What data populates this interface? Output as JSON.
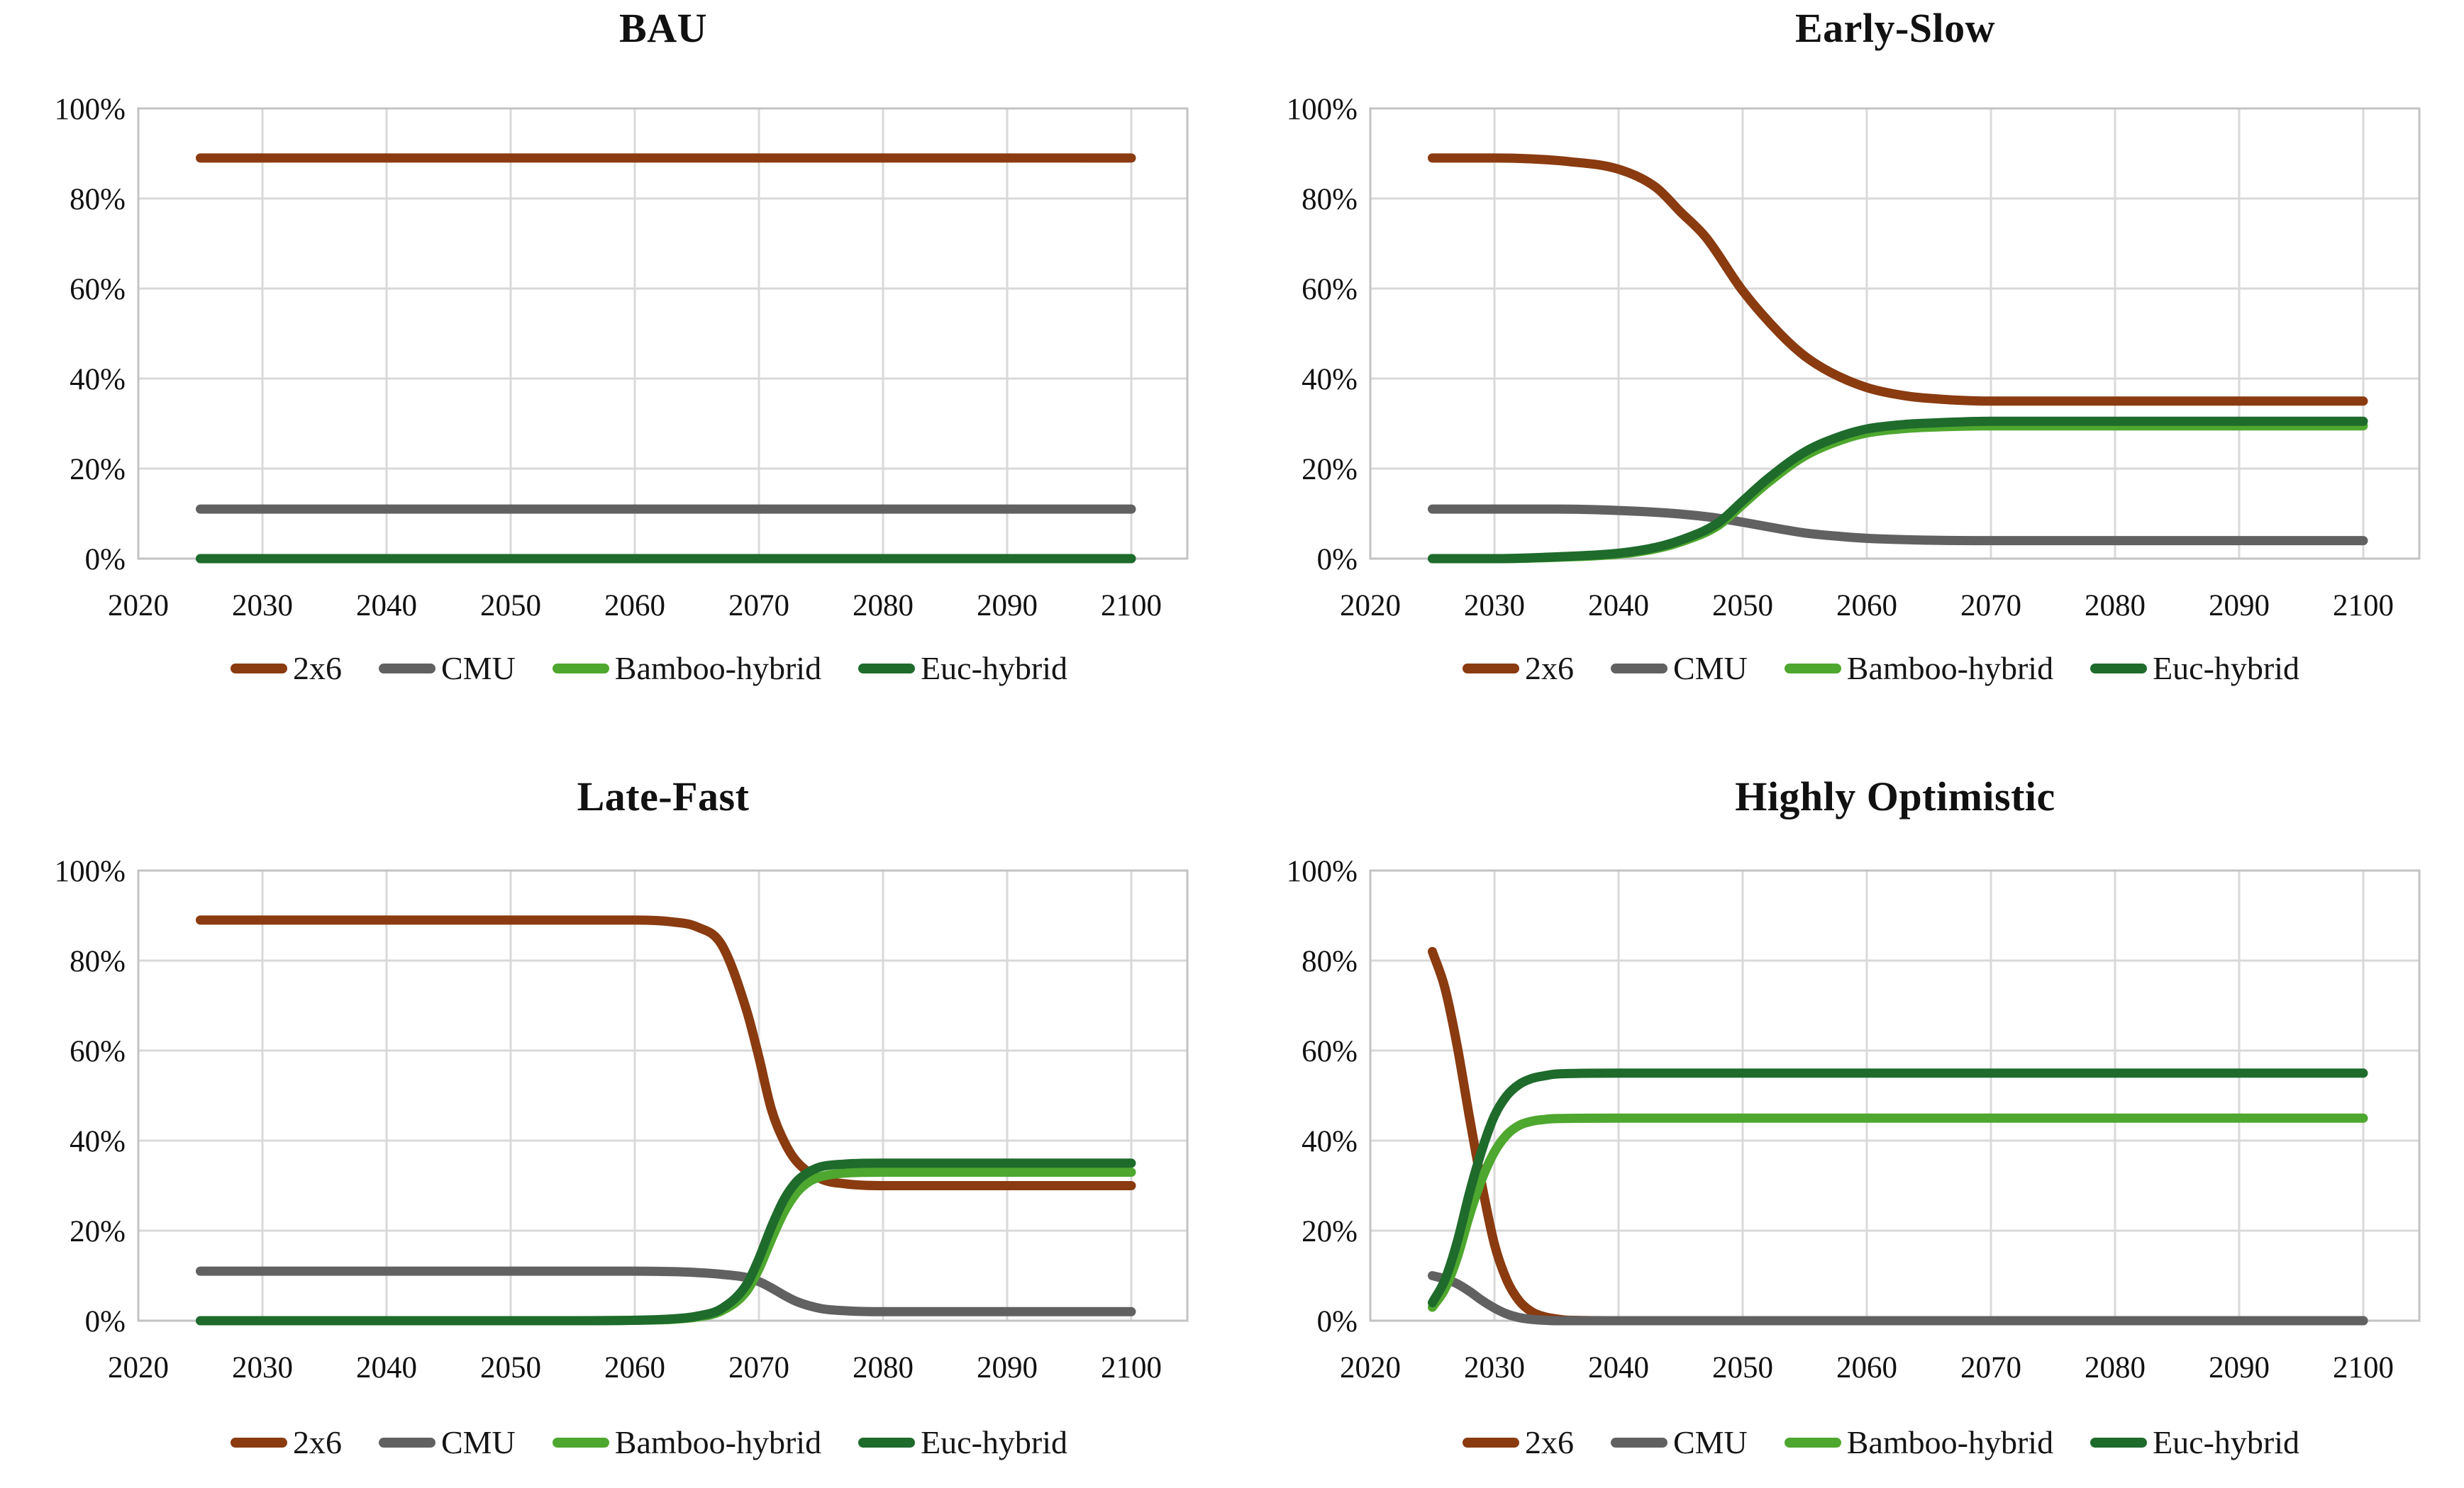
{
  "figure": {
    "background": "#ffffff",
    "text_color": "#111111",
    "gridline_color": "#d9d9d9",
    "border_color": "#c3c3c3"
  },
  "legend": {
    "items": [
      {
        "label": "2x6",
        "color": "#8a3b10"
      },
      {
        "label": "CMU",
        "color": "#616161"
      },
      {
        "label": "Bamboo-hybrid",
        "color": "#4ea72e"
      },
      {
        "label": "Euc-hybrid",
        "color": "#1e6b2c"
      }
    ]
  },
  "axes": {
    "x_range_display": [
      2020,
      2104.5
    ],
    "y_range": [
      0,
      100
    ],
    "grid": true,
    "x_ticks": [
      {
        "value": 2020,
        "label": "2020"
      },
      {
        "value": 2030,
        "label": "2030"
      },
      {
        "value": 2040,
        "label": "2040"
      },
      {
        "value": 2050,
        "label": "2050"
      },
      {
        "value": 2060,
        "label": "2060"
      },
      {
        "value": 2070,
        "label": "2070"
      },
      {
        "value": 2080,
        "label": "2080"
      },
      {
        "value": 2090,
        "label": "2090"
      },
      {
        "value": 2100,
        "label": "2100"
      }
    ],
    "y_ticks": [
      {
        "value": 0,
        "label": "0%"
      },
      {
        "value": 20,
        "label": "20%"
      },
      {
        "value": 40,
        "label": "40%"
      },
      {
        "value": 60,
        "label": "60%"
      },
      {
        "value": 80,
        "label": "80%"
      },
      {
        "value": 100,
        "label": "100%"
      }
    ]
  },
  "chart_data": [
    {
      "type": "line",
      "title": "BAU",
      "xlabel": "",
      "ylabel": "",
      "legend_position": "bottom",
      "series": [
        {
          "name": "2x6",
          "color": "#8a3b10",
          "points": [
            [
              2025,
              89
            ],
            [
              2040,
              89
            ],
            [
              2060,
              89
            ],
            [
              2080,
              89
            ],
            [
              2100,
              89
            ]
          ]
        },
        {
          "name": "CMU",
          "color": "#616161",
          "points": [
            [
              2025,
              11
            ],
            [
              2040,
              11
            ],
            [
              2060,
              11
            ],
            [
              2080,
              11
            ],
            [
              2100,
              11
            ]
          ]
        },
        {
          "name": "Bamboo-hybrid",
          "color": "#4ea72e",
          "points": [
            [
              2025,
              0
            ],
            [
              2040,
              0
            ],
            [
              2060,
              0
            ],
            [
              2080,
              0
            ],
            [
              2100,
              0
            ]
          ]
        },
        {
          "name": "Euc-hybrid",
          "color": "#1e6b2c",
          "points": [
            [
              2025,
              0
            ],
            [
              2040,
              0
            ],
            [
              2060,
              0
            ],
            [
              2080,
              0
            ],
            [
              2100,
              0
            ]
          ]
        }
      ]
    },
    {
      "type": "line",
      "title": "Early-Slow",
      "xlabel": "",
      "ylabel": "",
      "legend_position": "bottom",
      "series": [
        {
          "name": "2x6",
          "color": "#8a3b10",
          "points": [
            [
              2025,
              89
            ],
            [
              2030,
              89
            ],
            [
              2033,
              88.8
            ],
            [
              2036,
              88.2
            ],
            [
              2040,
              86.5
            ],
            [
              2043,
              82.5
            ],
            [
              2045,
              77
            ],
            [
              2047,
              71.5
            ],
            [
              2050,
              59.5
            ],
            [
              2053,
              50
            ],
            [
              2055,
              45
            ],
            [
              2057,
              41.5
            ],
            [
              2060,
              38
            ],
            [
              2063,
              36.2
            ],
            [
              2065,
              35.6
            ],
            [
              2070,
              35
            ],
            [
              2080,
              35
            ],
            [
              2090,
              35
            ],
            [
              2100,
              35
            ]
          ]
        },
        {
          "name": "CMU",
          "color": "#616161",
          "points": [
            [
              2025,
              11
            ],
            [
              2035,
              11
            ],
            [
              2040,
              10.7
            ],
            [
              2045,
              9.9
            ],
            [
              2048,
              9
            ],
            [
              2050,
              8.1
            ],
            [
              2053,
              6.6
            ],
            [
              2055,
              5.7
            ],
            [
              2058,
              4.9
            ],
            [
              2060,
              4.5
            ],
            [
              2065,
              4.1
            ],
            [
              2070,
              4
            ],
            [
              2080,
              4
            ],
            [
              2090,
              4
            ],
            [
              2100,
              4
            ]
          ]
        },
        {
          "name": "Bamboo-hybrid",
          "color": "#4ea72e",
          "points": [
            [
              2025,
              0
            ],
            [
              2030,
              0
            ],
            [
              2035,
              0.3
            ],
            [
              2040,
              1
            ],
            [
              2043,
              2.2
            ],
            [
              2045,
              3.7
            ],
            [
              2048,
              7.3
            ],
            [
              2050,
              12
            ],
            [
              2052,
              16.8
            ],
            [
              2055,
              22.8
            ],
            [
              2058,
              26.4
            ],
            [
              2060,
              27.9
            ],
            [
              2063,
              28.9
            ],
            [
              2065,
              29.2
            ],
            [
              2070,
              29.5
            ],
            [
              2080,
              29.5
            ],
            [
              2090,
              29.5
            ],
            [
              2100,
              29.5
            ]
          ]
        },
        {
          "name": "Euc-hybrid",
          "color": "#1e6b2c",
          "points": [
            [
              2025,
              0
            ],
            [
              2030,
              0
            ],
            [
              2035,
              0.4
            ],
            [
              2040,
              1.2
            ],
            [
              2043,
              2.5
            ],
            [
              2045,
              4.1
            ],
            [
              2048,
              7.9
            ],
            [
              2050,
              12.8
            ],
            [
              2052,
              17.7
            ],
            [
              2055,
              23.7
            ],
            [
              2058,
              27.3
            ],
            [
              2060,
              28.8
            ],
            [
              2063,
              29.8
            ],
            [
              2065,
              30.1
            ],
            [
              2070,
              30.5
            ],
            [
              2080,
              30.5
            ],
            [
              2090,
              30.5
            ],
            [
              2100,
              30.5
            ]
          ]
        }
      ]
    },
    {
      "type": "line",
      "title": "Late-Fast",
      "xlabel": "",
      "ylabel": "",
      "legend_position": "bottom",
      "series": [
        {
          "name": "2x6",
          "color": "#8a3b10",
          "points": [
            [
              2025,
              89
            ],
            [
              2040,
              89
            ],
            [
              2055,
              89
            ],
            [
              2060,
              89
            ],
            [
              2063,
              88.6
            ],
            [
              2065,
              87.5
            ],
            [
              2067,
              83.5
            ],
            [
              2069,
              69
            ],
            [
              2070,
              58.5
            ],
            [
              2071,
              47
            ],
            [
              2072,
              40
            ],
            [
              2073,
              35.5
            ],
            [
              2075,
              31.5
            ],
            [
              2077,
              30.4
            ],
            [
              2080,
              30
            ],
            [
              2090,
              30
            ],
            [
              2100,
              30
            ]
          ]
        },
        {
          "name": "CMU",
          "color": "#616161",
          "points": [
            [
              2025,
              11
            ],
            [
              2040,
              11
            ],
            [
              2055,
              11
            ],
            [
              2060,
              11
            ],
            [
              2063,
              10.9
            ],
            [
              2065,
              10.7
            ],
            [
              2067,
              10.3
            ],
            [
              2069,
              9.6
            ],
            [
              2070,
              8.7
            ],
            [
              2071,
              7.3
            ],
            [
              2072,
              5.7
            ],
            [
              2073,
              4.3
            ],
            [
              2075,
              2.7
            ],
            [
              2077,
              2.2
            ],
            [
              2080,
              2
            ],
            [
              2090,
              2
            ],
            [
              2100,
              2
            ]
          ]
        },
        {
          "name": "Bamboo-hybrid",
          "color": "#4ea72e",
          "points": [
            [
              2025,
              0
            ],
            [
              2040,
              0
            ],
            [
              2055,
              0
            ],
            [
              2060,
              0.1
            ],
            [
              2063,
              0.3
            ],
            [
              2065,
              0.8
            ],
            [
              2067,
              2.2
            ],
            [
              2069,
              6.5
            ],
            [
              2070,
              11.5
            ],
            [
              2071,
              18
            ],
            [
              2072,
              24
            ],
            [
              2073,
              28.3
            ],
            [
              2074,
              30.8
            ],
            [
              2075,
              32
            ],
            [
              2077,
              32.8
            ],
            [
              2080,
              33
            ],
            [
              2090,
              33
            ],
            [
              2100,
              33
            ]
          ]
        },
        {
          "name": "Euc-hybrid",
          "color": "#1e6b2c",
          "points": [
            [
              2025,
              0
            ],
            [
              2040,
              0
            ],
            [
              2055,
              0
            ],
            [
              2060,
              0.1
            ],
            [
              2063,
              0.4
            ],
            [
              2065,
              1
            ],
            [
              2067,
              2.7
            ],
            [
              2069,
              8
            ],
            [
              2070,
              13.8
            ],
            [
              2071,
              20.8
            ],
            [
              2072,
              26.8
            ],
            [
              2073,
              30.8
            ],
            [
              2074,
              33
            ],
            [
              2075,
              34.2
            ],
            [
              2077,
              34.8
            ],
            [
              2080,
              35
            ],
            [
              2090,
              35
            ],
            [
              2100,
              35
            ]
          ]
        }
      ]
    },
    {
      "type": "line",
      "title": "Highly Optimistic",
      "xlabel": "",
      "ylabel": "",
      "legend_position": "bottom",
      "series": [
        {
          "name": "2x6",
          "color": "#8a3b10",
          "points": [
            [
              2025,
              82
            ],
            [
              2026,
              74
            ],
            [
              2027,
              61
            ],
            [
              2028,
              45
            ],
            [
              2029,
              30
            ],
            [
              2030,
              17
            ],
            [
              2031,
              9
            ],
            [
              2032,
              4.4
            ],
            [
              2033,
              2
            ],
            [
              2034,
              0.9
            ],
            [
              2035,
              0.4
            ],
            [
              2036,
              0.1
            ],
            [
              2040,
              0
            ],
            [
              2060,
              0
            ],
            [
              2080,
              0
            ],
            [
              2100,
              0
            ]
          ]
        },
        {
          "name": "CMU",
          "color": "#616161",
          "points": [
            [
              2025,
              10
            ],
            [
              2026,
              9.3
            ],
            [
              2027,
              8.2
            ],
            [
              2028,
              6.5
            ],
            [
              2029,
              4.5
            ],
            [
              2030,
              2.8
            ],
            [
              2031,
              1.5
            ],
            [
              2032,
              0.7
            ],
            [
              2033,
              0.3
            ],
            [
              2034,
              0.1
            ],
            [
              2035,
              0
            ],
            [
              2040,
              0
            ],
            [
              2060,
              0
            ],
            [
              2080,
              0
            ],
            [
              2100,
              0
            ]
          ]
        },
        {
          "name": "Bamboo-hybrid",
          "color": "#4ea72e",
          "points": [
            [
              2025,
              3
            ],
            [
              2026,
              7
            ],
            [
              2027,
              14
            ],
            [
              2028,
              23.5
            ],
            [
              2029,
              31.5
            ],
            [
              2030,
              37.5
            ],
            [
              2031,
              41.3
            ],
            [
              2032,
              43.4
            ],
            [
              2033,
              44.3
            ],
            [
              2034,
              44.7
            ],
            [
              2035,
              44.9
            ],
            [
              2040,
              45
            ],
            [
              2060,
              45
            ],
            [
              2080,
              45
            ],
            [
              2100,
              45
            ]
          ]
        },
        {
          "name": "Euc-hybrid",
          "color": "#1e6b2c",
          "points": [
            [
              2025,
              4
            ],
            [
              2026,
              9
            ],
            [
              2027,
              17.5
            ],
            [
              2028,
              28.5
            ],
            [
              2029,
              38
            ],
            [
              2030,
              45.5
            ],
            [
              2031,
              50
            ],
            [
              2032,
              52.5
            ],
            [
              2033,
              53.8
            ],
            [
              2034,
              54.4
            ],
            [
              2035,
              54.8
            ],
            [
              2040,
              55
            ],
            [
              2060,
              55
            ],
            [
              2080,
              55
            ],
            [
              2100,
              55
            ]
          ]
        }
      ]
    }
  ]
}
